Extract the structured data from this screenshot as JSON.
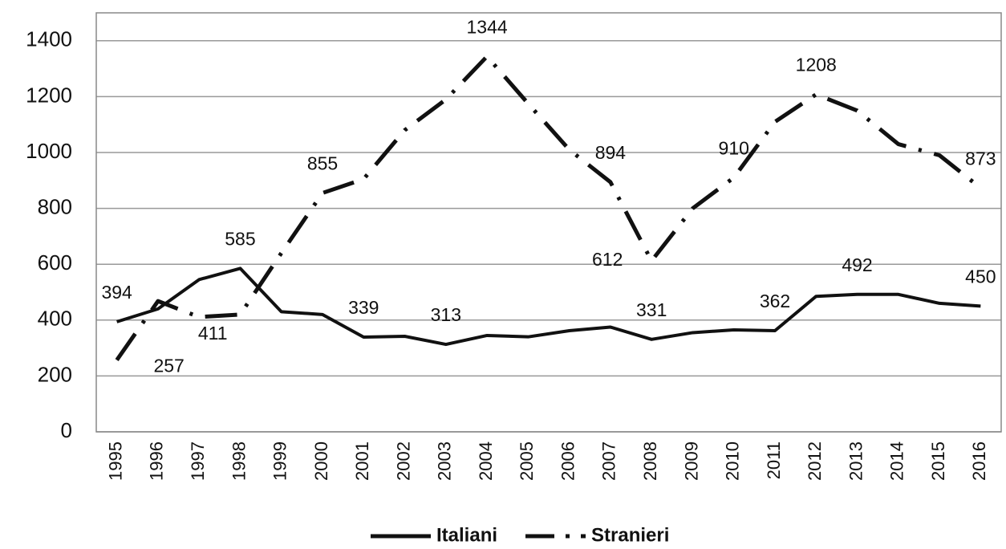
{
  "chart_data": {
    "type": "line",
    "categories": [
      "1995",
      "1996",
      "1997",
      "1998",
      "1999",
      "2000",
      "2001",
      "2002",
      "2003",
      "2004",
      "2005",
      "2006",
      "2007",
      "2008",
      "2009",
      "2010",
      "2011",
      "2012",
      "2013",
      "2014",
      "2015",
      "2016"
    ],
    "ylim": [
      0,
      1500
    ],
    "yticks": [
      0,
      200,
      400,
      600,
      800,
      1000,
      1200,
      1400
    ],
    "grid": true,
    "legend": "bottom",
    "series": [
      {
        "name": "Italiani",
        "color": "#111111",
        "style": "solid",
        "values": [
          394,
          440,
          545,
          585,
          430,
          420,
          339,
          342,
          313,
          345,
          340,
          362,
          375,
          331,
          355,
          365,
          362,
          485,
          492,
          492,
          460,
          450
        ],
        "value_labels": [
          "394",
          null,
          null,
          "585",
          null,
          null,
          "339",
          null,
          "313",
          null,
          null,
          null,
          null,
          "331",
          null,
          null,
          "362",
          null,
          "492",
          null,
          null,
          "450"
        ]
      },
      {
        "name": "Stranieri",
        "color": "#111111",
        "style": "dashdot",
        "values": [
          257,
          468,
          411,
          420,
          640,
          855,
          905,
          1080,
          1190,
          1344,
          1175,
          1010,
          894,
          612,
          800,
          910,
          1110,
          1208,
          1150,
          1030,
          990,
          873
        ],
        "value_labels": [
          "257",
          null,
          "411",
          null,
          null,
          "855",
          null,
          null,
          null,
          "1344",
          null,
          null,
          "894",
          "612",
          null,
          "910",
          null,
          "1208",
          null,
          null,
          null,
          "873"
        ]
      }
    ]
  }
}
